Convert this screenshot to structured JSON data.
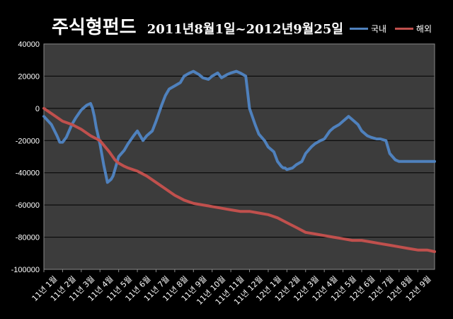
{
  "title_main": "주식형펀드",
  "title_period": "2011년8월1일~2012년9월25일",
  "legend": [
    {
      "name": "국내",
      "color": "#4F81BD"
    },
    {
      "name": "해외",
      "color": "#C0504D"
    }
  ],
  "chart_data": {
    "type": "line",
    "title": "주식형펀드 2011년8월1일~2012년9월25일",
    "ylim": [
      -100000,
      40000
    ],
    "yticks": [
      40000,
      20000,
      0,
      -20000,
      -40000,
      -60000,
      -80000,
      -100000
    ],
    "ytick_labels": [
      "40000",
      "20000",
      "0",
      "-20000",
      "-40000",
      "-60000",
      "-80000",
      "-100000"
    ],
    "xlim": [
      0,
      20.9
    ],
    "categories": [
      "11년 1월",
      "11년 2월",
      "11년 3월",
      "11년 4월",
      "11년 5월",
      "11년 6월",
      "11년 7월",
      "11년 8월",
      "11년 9월",
      "11년 10월",
      "11년 11월",
      "11년 12월",
      "12년 1월",
      "12년 2월",
      "12년 3월",
      "12년 4월",
      "12년 5월",
      "12년 6월",
      "12년 7월",
      "12년 8월",
      "12년 9월"
    ],
    "grid": true,
    "series": [
      {
        "name": "국내",
        "color": "#4F81BD",
        "x": [
          0,
          0.4,
          0.7,
          0.85,
          1.0,
          1.2,
          1.5,
          1.7,
          2.0,
          2.3,
          2.5,
          2.6,
          2.7,
          2.8,
          3.0,
          3.2,
          3.4,
          3.6,
          3.7,
          3.8,
          4.0,
          4.3,
          4.5,
          4.8,
          5.0,
          5.3,
          5.5,
          5.8,
          6.0,
          6.3,
          6.5,
          6.7,
          7.0,
          7.3,
          7.5,
          7.8,
          8.0,
          8.3,
          8.5,
          8.8,
          9.0,
          9.3,
          9.5,
          9.8,
          10.0,
          10.3,
          10.5,
          10.8,
          11.0,
          11.3,
          11.5,
          11.8,
          12.0,
          12.3,
          12.5,
          12.7,
          12.8,
          12.9,
          13.0,
          13.3,
          13.5,
          13.8,
          14.0,
          14.3,
          14.5,
          14.8,
          15.0,
          15.3,
          15.5,
          15.8,
          16.0,
          16.3,
          16.5,
          16.8,
          17.0,
          17.3,
          17.5,
          17.8,
          18.0,
          18.3,
          18.5,
          18.8,
          19.0,
          19.3,
          19.5,
          19.8,
          20.0,
          20.3,
          20.5,
          20.7,
          20.9
        ],
        "values": [
          -5000,
          -10000,
          -17000,
          -21000,
          -21000,
          -18000,
          -10000,
          -6000,
          -1000,
          2000,
          3000,
          0,
          -5000,
          -12000,
          -22000,
          -35000,
          -46000,
          -44000,
          -42000,
          -38000,
          -30000,
          -26000,
          -22000,
          -17000,
          -14000,
          -20000,
          -17000,
          -14000,
          -8000,
          2000,
          8000,
          12000,
          14000,
          16000,
          20000,
          22000,
          23000,
          21000,
          19000,
          18000,
          20000,
          22000,
          19000,
          21000,
          22000,
          23000,
          22000,
          20000,
          0,
          -10000,
          -16000,
          -20000,
          -24000,
          -27000,
          -33000,
          -36000,
          -37000,
          -37000,
          -38000,
          -37000,
          -35000,
          -33000,
          -28000,
          -24000,
          -22000,
          -20000,
          -19000,
          -14000,
          -12000,
          -10000,
          -8000,
          -5000,
          -7000,
          -10000,
          -14000,
          -17000,
          -18000,
          -19000,
          -19000,
          -20000,
          -28000,
          -32000,
          -33000,
          -33000,
          -33000,
          -33000,
          -33000,
          -33000,
          -33000,
          -33000,
          -33000
        ]
      },
      {
        "name": "해외",
        "color": "#C0504D",
        "x": [
          0,
          0.5,
          1.0,
          1.5,
          2.0,
          2.5,
          3.0,
          3.5,
          3.8,
          4.0,
          4.3,
          4.5,
          5.0,
          5.5,
          6.0,
          6.5,
          7.0,
          7.5,
          8.0,
          8.5,
          9.0,
          9.5,
          10.0,
          10.5,
          11.0,
          11.5,
          12.0,
          12.5,
          13.0,
          13.5,
          14.0,
          14.5,
          15.0,
          15.5,
          16.0,
          16.5,
          17.0,
          17.5,
          18.0,
          18.5,
          19.0,
          19.5,
          20.0,
          20.5,
          20.9
        ],
        "values": [
          0,
          -4000,
          -8000,
          -10000,
          -13000,
          -17000,
          -20000,
          -27000,
          -32000,
          -34000,
          -36000,
          -37000,
          -39000,
          -42000,
          -46000,
          -50000,
          -54000,
          -57000,
          -59000,
          -60000,
          -61000,
          -62000,
          -63000,
          -64000,
          -64000,
          -65000,
          -66000,
          -68000,
          -71000,
          -74000,
          -77000,
          -78000,
          -79000,
          -80000,
          -81000,
          -82000,
          -82000,
          -83000,
          -84000,
          -85000,
          -86000,
          -87000,
          -88000,
          -88000,
          -89000
        ]
      }
    ]
  }
}
